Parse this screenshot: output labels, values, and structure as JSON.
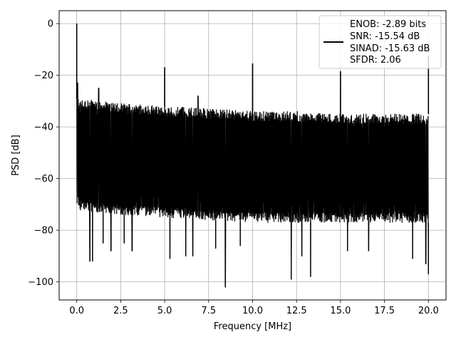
{
  "chart_data": {
    "type": "line",
    "xlabel": "Frequency [MHz]",
    "ylabel": "PSD [dB]",
    "xlim": [
      -1.0,
      21.0
    ],
    "ylim": [
      -107,
      5
    ],
    "grid": true,
    "legend_position": "top-right",
    "xticks": [
      {
        "value": 0.0,
        "label": "0.0"
      },
      {
        "value": 2.5,
        "label": "2.5"
      },
      {
        "value": 5.0,
        "label": "5.0"
      },
      {
        "value": 7.5,
        "label": "7.5"
      },
      {
        "value": 10.0,
        "label": "10.0"
      },
      {
        "value": 12.5,
        "label": "12.5"
      },
      {
        "value": 15.0,
        "label": "15.0"
      },
      {
        "value": 17.5,
        "label": "17.5"
      },
      {
        "value": 20.0,
        "label": "20.0"
      }
    ],
    "yticks": [
      {
        "value": 0,
        "label": "0"
      },
      {
        "value": -20,
        "label": "−20"
      },
      {
        "value": -40,
        "label": "−40"
      },
      {
        "value": -60,
        "label": "−60"
      },
      {
        "value": -80,
        "label": "−80"
      },
      {
        "value": -100,
        "label": "−100"
      }
    ],
    "legend": {
      "lines": [
        "ENOB: -2.89 bits",
        "SNR: -15.54 dB",
        "SINAD: -15.63 dB",
        "SFDR: 2.06"
      ],
      "color": "#000000"
    },
    "series": [
      {
        "color": "#000000",
        "band_top": [
          [
            0.0,
            -29
          ],
          [
            2.5,
            -31
          ],
          [
            5.0,
            -32
          ],
          [
            7.5,
            -33
          ],
          [
            10.0,
            -34
          ],
          [
            12.5,
            -34
          ],
          [
            15.0,
            -35
          ],
          [
            17.5,
            -35
          ],
          [
            20.0,
            -35
          ]
        ],
        "band_bottom": [
          [
            0.0,
            -72
          ],
          [
            2.5,
            -74
          ],
          [
            5.0,
            -75
          ],
          [
            7.5,
            -76
          ],
          [
            10.0,
            -77
          ],
          [
            12.5,
            -77
          ],
          [
            15.0,
            -77
          ],
          [
            17.5,
            -77
          ],
          [
            20.0,
            -77
          ]
        ],
        "spikes": [
          {
            "x": 0.0,
            "y": 0
          },
          {
            "x": 0.05,
            "y": -23
          },
          {
            "x": 1.25,
            "y": -25
          },
          {
            "x": 5.0,
            "y": -17
          },
          {
            "x": 6.9,
            "y": -28
          },
          {
            "x": 10.0,
            "y": -15.5
          },
          {
            "x": 15.0,
            "y": -18.5
          },
          {
            "x": 20.0,
            "y": -12.5
          }
        ],
        "dips": [
          {
            "x": 0.75,
            "y": -92
          },
          {
            "x": 0.9,
            "y": -92
          },
          {
            "x": 1.5,
            "y": -85
          },
          {
            "x": 1.95,
            "y": -88
          },
          {
            "x": 2.7,
            "y": -85
          },
          {
            "x": 3.15,
            "y": -88
          },
          {
            "x": 5.3,
            "y": -91
          },
          {
            "x": 6.2,
            "y": -90
          },
          {
            "x": 6.6,
            "y": -90
          },
          {
            "x": 7.9,
            "y": -87
          },
          {
            "x": 8.45,
            "y": -102
          },
          {
            "x": 9.3,
            "y": -86
          },
          {
            "x": 12.2,
            "y": -99
          },
          {
            "x": 12.8,
            "y": -90
          },
          {
            "x": 13.3,
            "y": -98
          },
          {
            "x": 15.4,
            "y": -88
          },
          {
            "x": 16.6,
            "y": -88
          },
          {
            "x": 19.1,
            "y": -91
          },
          {
            "x": 19.85,
            "y": -93
          },
          {
            "x": 20.0,
            "y": -97
          }
        ]
      }
    ]
  }
}
